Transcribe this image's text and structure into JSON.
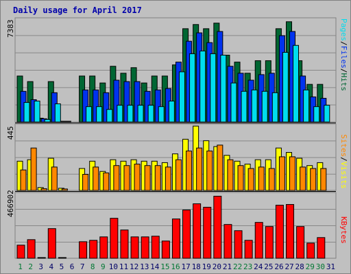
{
  "title": "Daily usage for April 2017",
  "colors": {
    "hits": "#006633",
    "files": "#0033ee",
    "pages": "#00ddee",
    "visits": "#ffff00",
    "sites": "#ff8800",
    "kbytes": "#ff0000",
    "background": "#c0c0c0",
    "title": "#0000aa",
    "sep": "#000000",
    "day_weekend": "#007733",
    "day_weekday": "#000066"
  },
  "chart_data": [
    {
      "type": "bar",
      "panel": "hits-files-pages",
      "y_max_label": "7383",
      "ylim": [
        0,
        7383
      ],
      "grid": true,
      "legend_placement": "right",
      "legend": [
        "Pages",
        "Files",
        "Hits"
      ],
      "categories": [
        "1",
        "2",
        "3",
        "4",
        "5",
        "6",
        "7",
        "8",
        "9",
        "10",
        "11",
        "12",
        "13",
        "14",
        "15",
        "16",
        "17",
        "18",
        "19",
        "20",
        "21",
        "22",
        "23",
        "24",
        "25",
        "26",
        "27",
        "28",
        "29",
        "30",
        "31"
      ],
      "series": [
        {
          "name": "Hits",
          "values": [
            3300,
            2900,
            270,
            2900,
            50,
            0,
            3300,
            3300,
            2800,
            4000,
            3500,
            3900,
            2800,
            3300,
            3300,
            4100,
            6700,
            7000,
            6700,
            7100,
            4800,
            4300,
            3500,
            4400,
            4400,
            6700,
            7200,
            4400,
            2700,
            2700,
            0
          ]
        },
        {
          "name": "Files",
          "values": [
            2200,
            1600,
            230,
            2100,
            40,
            0,
            2300,
            2300,
            2100,
            3000,
            2900,
            2900,
            2200,
            2300,
            2400,
            4300,
            5800,
            6400,
            5700,
            6500,
            4000,
            3500,
            3000,
            3400,
            3500,
            6200,
            6500,
            3300,
            1800,
            1700,
            0
          ]
        },
        {
          "name": "Pages",
          "values": [
            1400,
            1500,
            180,
            1300,
            30,
            0,
            1100,
            1100,
            900,
            1200,
            1200,
            1200,
            1200,
            1100,
            1500,
            3600,
            4900,
            5100,
            4900,
            4800,
            2800,
            2200,
            2300,
            2200,
            2100,
            5000,
            5500,
            2300,
            1100,
            1200,
            0
          ]
        }
      ]
    },
    {
      "type": "bar",
      "panel": "visits-sites",
      "y_max_label": "445",
      "ylim": [
        0,
        445
      ],
      "grid": true,
      "legend_placement": "right",
      "legend": [
        "Sites",
        "Visits"
      ],
      "categories": [
        "1",
        "2",
        "3",
        "4",
        "5",
        "6",
        "7",
        "8",
        "9",
        "10",
        "11",
        "12",
        "13",
        "14",
        "15",
        "16",
        "17",
        "18",
        "19",
        "20",
        "21",
        "22",
        "23",
        "24",
        "25",
        "26",
        "27",
        "28",
        "29",
        "30",
        "31"
      ],
      "series": [
        {
          "name": "Visits",
          "values": [
            200,
            210,
            20,
            220,
            15,
            0,
            150,
            200,
            130,
            210,
            200,
            210,
            200,
            200,
            190,
            250,
            350,
            440,
            340,
            300,
            240,
            200,
            180,
            210,
            210,
            290,
            260,
            220,
            170,
            190,
            0
          ]
        },
        {
          "name": "Sites",
          "values": [
            140,
            290,
            12,
            160,
            10,
            0,
            110,
            160,
            120,
            170,
            170,
            180,
            170,
            170,
            160,
            210,
            270,
            290,
            270,
            310,
            210,
            170,
            150,
            160,
            150,
            230,
            230,
            160,
            150,
            150,
            0
          ]
        }
      ]
    },
    {
      "type": "bar",
      "panel": "kbytes",
      "y_max_label": "466902",
      "ylim": [
        0,
        466902
      ],
      "grid": true,
      "legend_placement": "right",
      "legend": [
        "KBytes"
      ],
      "categories": [
        "1",
        "2",
        "3",
        "4",
        "5",
        "6",
        "7",
        "8",
        "9",
        "10",
        "11",
        "12",
        "13",
        "14",
        "15",
        "16",
        "17",
        "18",
        "19",
        "20",
        "21",
        "22",
        "23",
        "24",
        "25",
        "26",
        "27",
        "28",
        "29",
        "30",
        "31"
      ],
      "series": [
        {
          "name": "KBytes",
          "values": [
            95000,
            135000,
            5000,
            215000,
            5000,
            0,
            120000,
            130000,
            155000,
            290000,
            205000,
            155000,
            155000,
            160000,
            125000,
            285000,
            350000,
            395000,
            370000,
            450000,
            245000,
            200000,
            130000,
            260000,
            230000,
            385000,
            390000,
            230000,
            110000,
            150000,
            0
          ]
        }
      ]
    }
  ],
  "axis": {
    "days": [
      "1",
      "2",
      "3",
      "4",
      "5",
      "6",
      "7",
      "8",
      "9",
      "10",
      "11",
      "12",
      "13",
      "14",
      "15",
      "16",
      "17",
      "18",
      "19",
      "20",
      "21",
      "22",
      "23",
      "24",
      "25",
      "26",
      "27",
      "28",
      "29",
      "30",
      "31"
    ],
    "weekend_days": [
      "1",
      "2",
      "8",
      "9",
      "15",
      "16",
      "22",
      "23",
      "29",
      "30"
    ]
  },
  "right_labels": {
    "panel1": [
      {
        "text": "Pages",
        "color": "#00ddee"
      },
      {
        "text": "/",
        "color": "#000000"
      },
      {
        "text": "Files",
        "color": "#0033ee"
      },
      {
        "text": "/",
        "color": "#000000"
      },
      {
        "text": "Hits",
        "color": "#006633"
      }
    ],
    "panel2": [
      {
        "text": "Sites",
        "color": "#ff8800"
      },
      {
        "text": "/",
        "color": "#000000"
      },
      {
        "text": "Visits",
        "color": "#ffff00"
      }
    ],
    "panel3": [
      {
        "text": "KBytes",
        "color": "#ff0000"
      }
    ]
  }
}
